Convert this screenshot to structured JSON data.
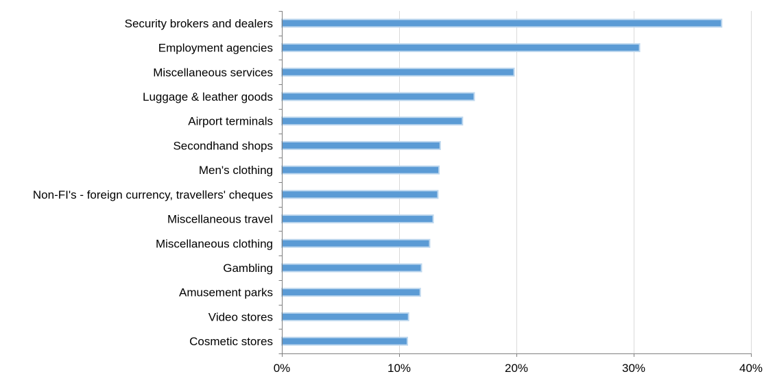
{
  "chart_data": {
    "type": "bar",
    "orientation": "horizontal",
    "title": "",
    "xlabel": "",
    "ylabel": "",
    "categories": [
      "Security brokers and dealers",
      "Employment agencies",
      "Miscellaneous services",
      "Luggage & leather goods",
      "Airport terminals",
      "Secondhand shops",
      "Men's clothing",
      "Non-FI's - foreign currency, travellers' cheques",
      "Miscellaneous travel",
      "Miscellaneous clothing",
      "Gambling",
      "Amusement parks",
      "Video stores",
      "Cosmetic stores"
    ],
    "values": [
      37.5,
      30.5,
      19.8,
      16.4,
      15.4,
      13.5,
      13.4,
      13.3,
      12.9,
      12.6,
      11.9,
      11.8,
      10.8,
      10.7
    ],
    "xlim": [
      0,
      40
    ],
    "x_ticks": [
      0,
      10,
      20,
      30,
      40
    ],
    "x_tick_labels": [
      "0%",
      "10%",
      "20%",
      "30%",
      "40%"
    ],
    "grid": "vertical gridlines",
    "legend": "none",
    "bar_color": "#5b9bd5",
    "bar_edge_color": "#bdd7ee",
    "grid_color": "#d9d9d9",
    "axis_color": "#7f7f7f"
  }
}
